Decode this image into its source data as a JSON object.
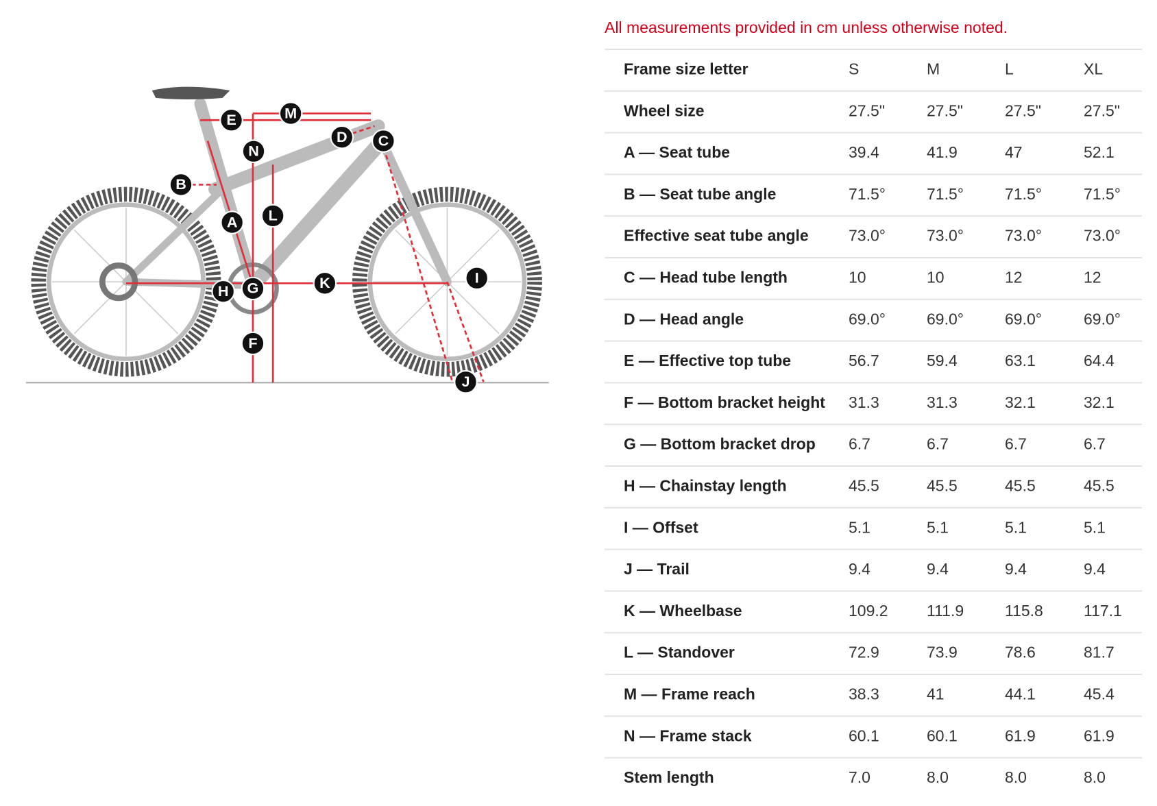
{
  "note": "All measurements provided in cm unless otherwise noted.",
  "diagram": {
    "markers": [
      "E",
      "M",
      "D",
      "C",
      "N",
      "B",
      "A",
      "L",
      "H",
      "G",
      "K",
      "I",
      "F",
      "J"
    ]
  },
  "table": {
    "header": [
      "Frame size letter",
      "S",
      "M",
      "L",
      "XL"
    ],
    "rows": [
      [
        "Wheel size",
        "27.5\"",
        "27.5\"",
        "27.5\"",
        "27.5\""
      ],
      [
        "A — Seat tube",
        "39.4",
        "41.9",
        "47",
        "52.1"
      ],
      [
        "B — Seat tube angle",
        "71.5°",
        "71.5°",
        "71.5°",
        "71.5°"
      ],
      [
        "Effective seat tube angle",
        "73.0°",
        "73.0°",
        "73.0°",
        "73.0°"
      ],
      [
        "C — Head tube length",
        "10",
        "10",
        "12",
        "12"
      ],
      [
        "D — Head angle",
        "69.0°",
        "69.0°",
        "69.0°",
        "69.0°"
      ],
      [
        "E — Effective top tube",
        "56.7",
        "59.4",
        "63.1",
        "64.4"
      ],
      [
        "F — Bottom bracket height",
        "31.3",
        "31.3",
        "32.1",
        "32.1"
      ],
      [
        "G — Bottom bracket drop",
        "6.7",
        "6.7",
        "6.7",
        "6.7"
      ],
      [
        "H — Chainstay length",
        "45.5",
        "45.5",
        "45.5",
        "45.5"
      ],
      [
        "I — Offset",
        "5.1",
        "5.1",
        "5.1",
        "5.1"
      ],
      [
        "J — Trail",
        "9.4",
        "9.4",
        "9.4",
        "9.4"
      ],
      [
        "K — Wheelbase",
        "109.2",
        "111.9",
        "115.8",
        "117.1"
      ],
      [
        "L — Standover",
        "72.9",
        "73.9",
        "78.6",
        "81.7"
      ],
      [
        "M — Frame reach",
        "38.3",
        "41",
        "44.1",
        "45.4"
      ],
      [
        "N — Frame stack",
        "60.1",
        "60.1",
        "61.9",
        "61.9"
      ],
      [
        "Stem length",
        "7.0",
        "8.0",
        "8.0",
        "8.0"
      ]
    ]
  }
}
